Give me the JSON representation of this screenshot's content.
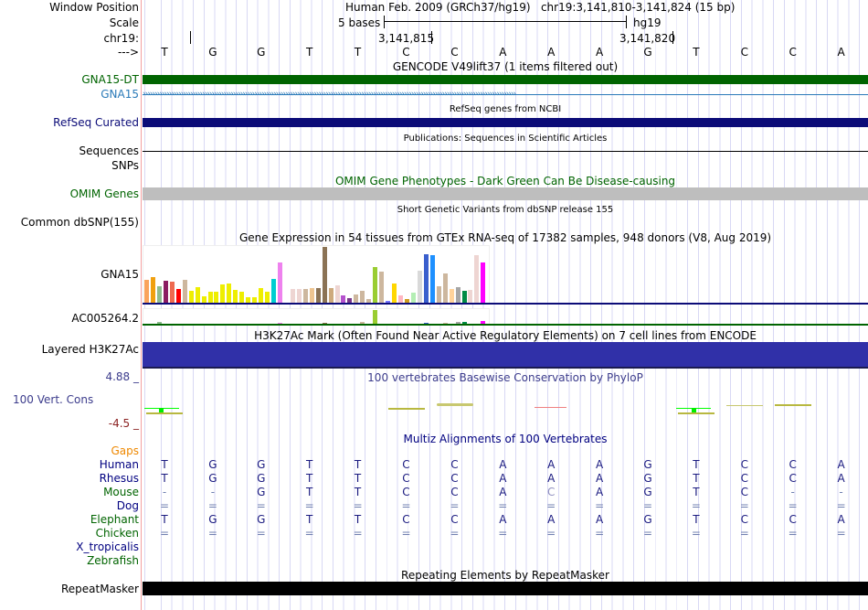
{
  "header": {
    "window_position_label": "Window Position",
    "scale_label": "Scale",
    "chr_label": "chr19:",
    "strand_label": "--->",
    "position_text": "Human Feb. 2009 (GRCh37/hg19)   chr19:3,141,810-3,141,824 (15 bp)",
    "scale_text": "5 bases",
    "assembly": "hg19",
    "tick1": "3,141,815",
    "tick2": "3,141,820"
  },
  "sequence": [
    "T",
    "G",
    "G",
    "T",
    "T",
    "C",
    "C",
    "A",
    "A",
    "A",
    "G",
    "T",
    "C",
    "C",
    "A"
  ],
  "tracks": {
    "gencode_title": "GENCODE V49lift37 (1 items filtered out)",
    "gna15_dt": "GNA15-DT",
    "gna15": "GNA15",
    "refseq_title": "RefSeq genes from NCBI",
    "refseq_label": "RefSeq Curated",
    "pubs_title": "Publications: Sequences in Scientific Articles",
    "sequences_label": "Sequences",
    "snps_label": "SNPs",
    "omim_title": "OMIM Gene Phenotypes - Dark Green Can Be Disease-causing",
    "omim_label": "OMIM Genes",
    "dbsnp_title": "Short Genetic Variants from dbSNP release 155",
    "dbsnp_label": "Common dbSNP(155)",
    "gtex_title": "Gene Expression in 54 tissues from GTEx RNA-seq of 17382 samples, 948 donors (V8, Aug 2019)",
    "gtex_gene1": "GNA15",
    "gtex_gene2": "AC005264.2",
    "h3k_title": "H3K27Ac Mark (Often Found Near Active Regulatory Elements) on 7 cell lines from ENCODE",
    "h3k_label": "Layered H3K27Ac",
    "phylop_title": "100 vertebrates Basewise Conservation by PhyloP",
    "phylop_max": "4.88 _",
    "phylop_label": "100 Vert. Cons",
    "phylop_min": "-4.5 _",
    "multiz_title": "Multiz Alignments of 100 Vertebrates",
    "gaps_label": "Gaps",
    "repeat_title": "Repeating Elements by RepeatMasker",
    "repeat_label": "RepeatMasker"
  },
  "alignment": [
    {
      "species": "Human",
      "color": "#000080",
      "seq": [
        "T",
        "G",
        "G",
        "T",
        "T",
        "C",
        "C",
        "A",
        "A",
        "A",
        "G",
        "T",
        "C",
        "C",
        "A"
      ]
    },
    {
      "species": "Rhesus",
      "color": "#000080",
      "seq": [
        "T",
        "G",
        "G",
        "T",
        "T",
        "C",
        "C",
        "A",
        "A",
        "A",
        "G",
        "T",
        "C",
        "C",
        "A"
      ]
    },
    {
      "species": "Mouse",
      "color": "#006400",
      "seq": [
        "-",
        "-",
        "G",
        "T",
        "T",
        "C",
        "C",
        "A",
        "C",
        "A",
        "G",
        "T",
        "C",
        "-",
        "-"
      ]
    },
    {
      "species": "Dog",
      "color": "#000080",
      "seq": [
        "=",
        "=",
        "=",
        "=",
        "=",
        "=",
        "=",
        "=",
        "=",
        "=",
        "=",
        "=",
        "=",
        "=",
        "="
      ]
    },
    {
      "species": "Elephant",
      "color": "#006400",
      "seq": [
        "T",
        "G",
        "G",
        "T",
        "T",
        "C",
        "C",
        "A",
        "A",
        "A",
        "G",
        "T",
        "C",
        "C",
        "A"
      ]
    },
    {
      "species": "Chicken",
      "color": "#006400",
      "seq": [
        "=",
        "=",
        "=",
        "=",
        "=",
        "=",
        "=",
        "=",
        "=",
        "=",
        "=",
        "=",
        "=",
        "=",
        "="
      ]
    },
    {
      "species": "X_tropicalis",
      "color": "#000080",
      "seq": []
    },
    {
      "species": "Zebrafish",
      "color": "#006400",
      "seq": []
    }
  ],
  "gtex": {
    "colors": [
      "#f9a45c",
      "#f0a010",
      "#8fbc8f",
      "#8b1c62",
      "#ee6a50",
      "#ff0000",
      "#cdb79e",
      "#eeee00",
      "#eeee00",
      "#eeee00",
      "#eeee00",
      "#eeee00",
      "#eeee00",
      "#eeee00",
      "#eeee00",
      "#eeee00",
      "#eeee00",
      "#eeee00",
      "#eeee00",
      "#eeee00",
      "#00ced1",
      "#ee82ee",
      "#9ac0cd",
      "#eed5d2",
      "#eed5d2",
      "#cdb79e",
      "#eec591",
      "#8b7355",
      "#8b7355",
      "#cdaa7d",
      "#eed5d2",
      "#b452cd",
      "#7a378b",
      "#cdb79e",
      "#cdb79e",
      "#cdb79e",
      "#9acd32",
      "#cdb79e",
      "#7777ff",
      "#ffd700",
      "#ffb6c1",
      "#cd9b1d",
      "#b4eeb4",
      "#d9d9d9",
      "#3a5fcd",
      "#1e90ff",
      "#cdb79e",
      "#cdb79e",
      "#ffd39b",
      "#a6a6a6",
      "#008b45",
      "#eed5d2",
      "#eed5d2",
      "#ff00ff"
    ],
    "gna15": [
      27,
      30,
      20,
      26,
      25,
      17,
      27,
      15,
      19,
      9,
      14,
      14,
      22,
      23,
      16,
      14,
      8,
      8,
      18,
      14,
      28,
      46,
      1,
      17,
      17,
      17,
      18,
      18,
      63,
      18,
      21,
      10,
      7,
      11,
      15,
      6,
      41,
      36,
      4,
      23,
      10,
      6,
      13,
      37,
      55,
      54,
      20,
      34,
      17,
      19,
      15,
      16,
      54,
      46
    ],
    "ac005264": [
      1,
      1,
      3,
      0,
      0,
      0,
      1,
      0,
      0,
      0,
      0,
      0,
      0,
      0,
      0,
      0,
      0,
      0,
      0,
      0,
      0,
      2,
      0,
      0,
      0,
      0,
      0,
      0,
      2,
      0,
      0,
      0,
      0,
      0,
      3,
      1,
      16,
      0,
      0,
      0,
      0,
      0,
      0,
      1,
      2,
      1,
      0,
      2,
      0,
      3,
      3,
      0,
      1,
      4
    ]
  }
}
